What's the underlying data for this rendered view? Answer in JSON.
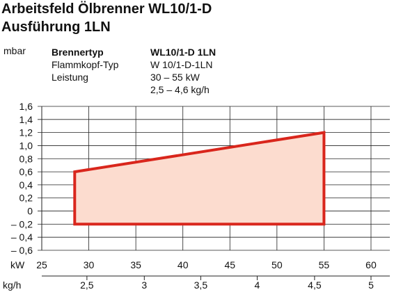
{
  "title_line1": "Arbeitsfeld Ölbrenner WL10/1-D",
  "title_line2": "Ausführung 1LN",
  "specs": {
    "labels": [
      "Brennertyp",
      "Flammkopf-Typ",
      "Leistung"
    ],
    "values": [
      "WL10/1-D 1LN",
      "W 10/1-D-1LN",
      "30 – 55 kW",
      "2,5 – 4,6 kg/h"
    ]
  },
  "chart_data": {
    "type": "area",
    "ylabel": "mbar",
    "xlabel": "kW",
    "x2label": "kg/h",
    "xlim": [
      25,
      62
    ],
    "ylim": [
      -0.6,
      1.6
    ],
    "x_ticks": [
      25,
      30,
      35,
      40,
      45,
      50,
      55,
      60
    ],
    "x_tick_labels": [
      "25",
      "30",
      "35",
      "40",
      "45",
      "50",
      "55",
      "60"
    ],
    "y_ticks": [
      -0.6,
      -0.4,
      -0.2,
      0,
      0.2,
      0.4,
      0.6,
      0.8,
      1.0,
      1.2,
      1.4,
      1.6
    ],
    "y_tick_labels": [
      "– 0,6",
      "– 0,4",
      "– 0,2",
      "0",
      "0,2",
      "0,4",
      "0,6",
      "0,8",
      "1,0",
      "1,2",
      "1,4",
      "1,6"
    ],
    "x2_ticks": [
      2.5,
      3,
      3.5,
      4,
      4.5,
      5
    ],
    "x2_tick_labels": [
      "2,5",
      "3",
      "3,5",
      "4",
      "4,5",
      "5"
    ],
    "x2_tick_kw": [
      29.8,
      35.9,
      41.9,
      47.9,
      54.0,
      60.0
    ],
    "region": {
      "x": [
        28.5,
        28.5,
        55,
        55
      ],
      "y": [
        -0.2,
        0.6,
        1.2,
        -0.2
      ]
    },
    "grid": true,
    "colors": {
      "fill": "#fcdccf",
      "stroke": "#d9261c",
      "grid": "#222222"
    }
  }
}
